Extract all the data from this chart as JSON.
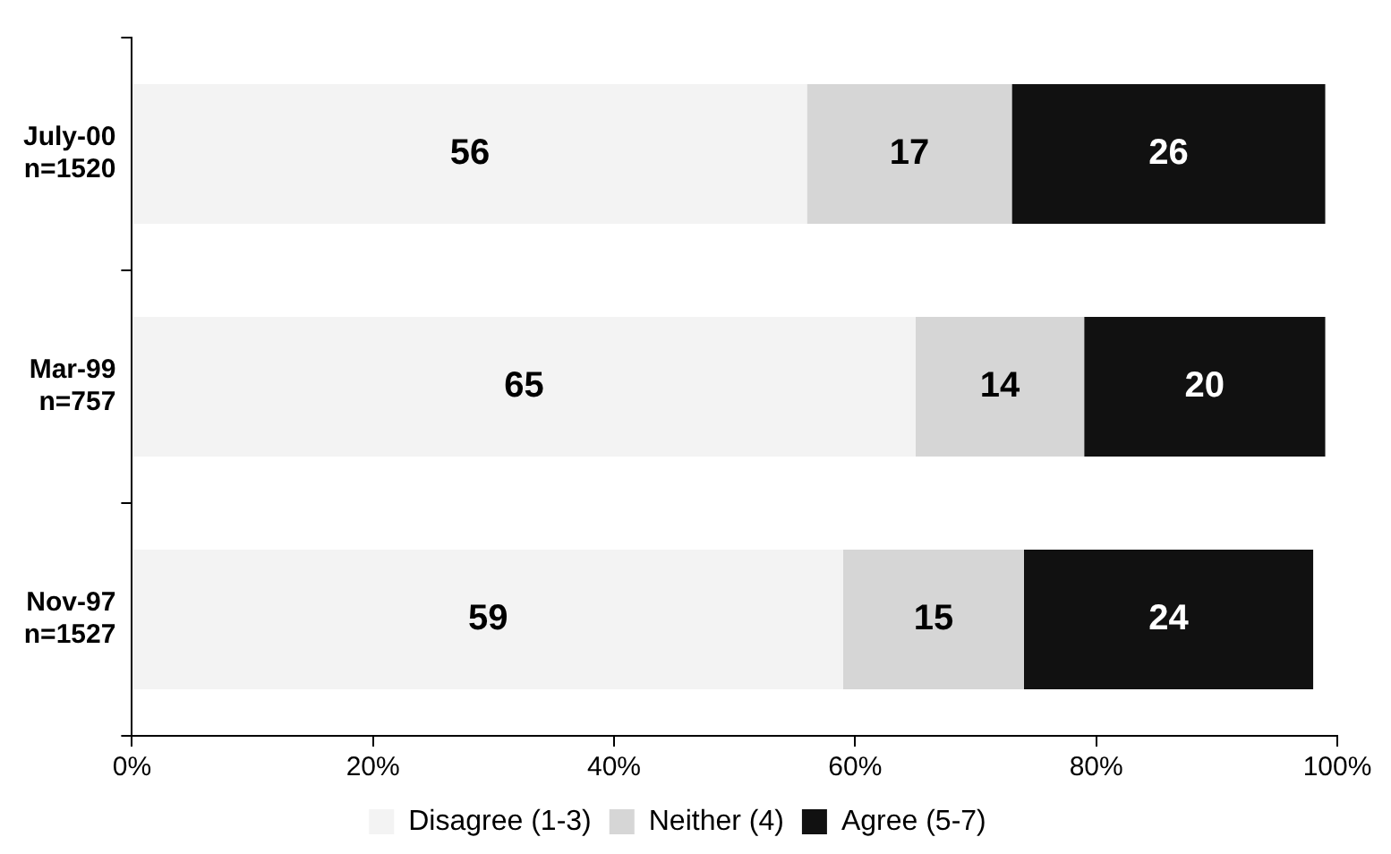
{
  "chart_data": {
    "type": "bar",
    "orientation": "horizontal",
    "stacked": true,
    "categories": [
      "July-00\nn=1520",
      "Mar-99\nn=757",
      "Nov-97\nn=1527"
    ],
    "series": [
      {
        "name": "Disagree (1-3)",
        "color": "#f3f3f3",
        "values": [
          56,
          65,
          59
        ]
      },
      {
        "name": "Neither (4)",
        "color": "#d6d6d6",
        "values": [
          17,
          14,
          15
        ]
      },
      {
        "name": "Agree (5-7)",
        "color": "#111111",
        "values": [
          26,
          20,
          24
        ]
      }
    ],
    "xlim": [
      0,
      100
    ],
    "xticks": [
      {
        "value": 0,
        "label": "0%"
      },
      {
        "value": 20,
        "label": "20%"
      },
      {
        "value": 40,
        "label": "40%"
      },
      {
        "value": 60,
        "label": "60%"
      },
      {
        "value": 80,
        "label": "80%"
      },
      {
        "value": 100,
        "label": "100%"
      }
    ],
    "grid": false,
    "legend": "bottom",
    "data_labels": true
  }
}
